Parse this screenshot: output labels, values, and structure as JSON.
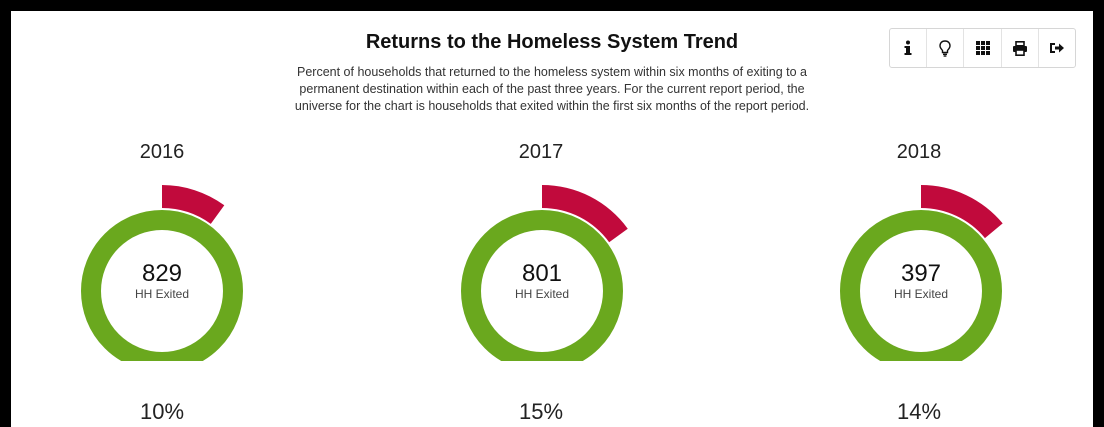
{
  "title": "Returns to the Homeless System Trend",
  "subtitle": "Percent of households that returned to the homeless system within six months of exiting to a permanent destination within each of the past three years. For the current report period, the universe for the chart is households that exited within the first six months of the report period.",
  "toolbar": [
    {
      "name": "info-icon"
    },
    {
      "name": "lightbulb-icon"
    },
    {
      "name": "grid-icon"
    },
    {
      "name": "print-icon"
    },
    {
      "name": "export-icon"
    }
  ],
  "colors": {
    "exited": "#6aa81e",
    "returned": "#c10a3c"
  },
  "chart_data": [
    {
      "type": "pie",
      "title": "2016",
      "center_value": "829",
      "center_label": "HH Exited",
      "return_percent": 10,
      "percent_label": "10%"
    },
    {
      "type": "pie",
      "title": "2017",
      "center_value": "801",
      "center_label": "HH Exited",
      "return_percent": 15,
      "percent_label": "15%"
    },
    {
      "type": "pie",
      "title": "2018",
      "center_value": "397",
      "center_label": "HH Exited",
      "return_percent": 14,
      "percent_label": "14%"
    }
  ]
}
